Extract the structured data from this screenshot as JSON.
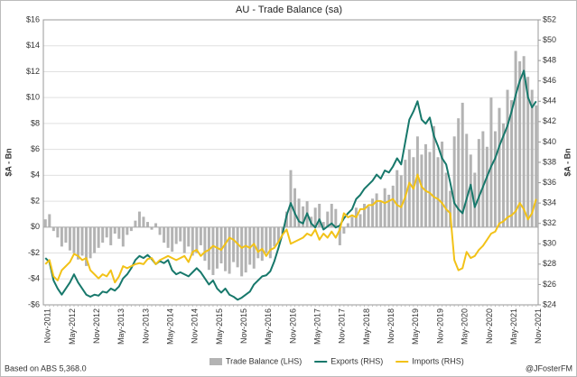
{
  "chart_data": {
    "type": "bar-line",
    "title": "AU - Trade Balance (sa)",
    "ylabel": "$A - Bn",
    "y2label": "$A - Bn",
    "source": "Based on ABS 5,368.0",
    "credit": "@JFosterFM",
    "grid": true,
    "legend": "bottom",
    "categories": [
      "Nov-2011",
      null,
      null,
      null,
      null,
      null,
      "May-2012",
      null,
      null,
      null,
      null,
      null,
      "Nov-2012",
      null,
      null,
      null,
      null,
      null,
      "May-2013",
      null,
      null,
      null,
      null,
      null,
      "Nov-2013",
      null,
      null,
      null,
      null,
      null,
      "May-2014",
      null,
      null,
      null,
      null,
      null,
      "Nov-2014",
      null,
      null,
      null,
      null,
      null,
      "May-2015",
      null,
      null,
      null,
      null,
      null,
      "Nov-2015",
      null,
      null,
      null,
      null,
      null,
      "May-2016",
      null,
      null,
      null,
      null,
      null,
      "Nov-2016",
      null,
      null,
      null,
      null,
      null,
      "May-2017",
      null,
      null,
      null,
      null,
      null,
      "Nov-2017",
      null,
      null,
      null,
      null,
      null,
      "May-2018",
      null,
      null,
      null,
      null,
      null,
      "Nov-2018",
      null,
      null,
      null,
      null,
      null,
      "May-2019",
      null,
      null,
      null,
      null,
      null,
      "Nov-2019",
      null,
      null,
      null,
      null,
      null,
      "May-2020",
      null,
      null,
      null,
      null,
      null,
      "Nov-2020",
      null,
      null,
      null,
      null,
      null,
      "May-2021",
      null,
      null,
      null,
      null,
      null,
      "Nov-2021"
    ],
    "ylim": [
      -6,
      16
    ],
    "yticks": [
      {
        "value": -6,
        "label": "-$6"
      },
      {
        "value": -4,
        "label": "-$4"
      },
      {
        "value": -2,
        "label": "-$2"
      },
      {
        "value": 0,
        "label": "$0"
      },
      {
        "value": 2,
        "label": "$2"
      },
      {
        "value": 4,
        "label": "$4"
      },
      {
        "value": 6,
        "label": "$6"
      },
      {
        "value": 8,
        "label": "$8"
      },
      {
        "value": 10,
        "label": "$10"
      },
      {
        "value": 12,
        "label": "$12"
      },
      {
        "value": 14,
        "label": "$14"
      },
      {
        "value": 16,
        "label": "$16"
      }
    ],
    "y2lim": [
      24,
      52
    ],
    "y2ticks": [
      {
        "value": 24,
        "label": "$24"
      },
      {
        "value": 26,
        "label": "$26"
      },
      {
        "value": 28,
        "label": "$28"
      },
      {
        "value": 30,
        "label": "$30"
      },
      {
        "value": 32,
        "label": "$32"
      },
      {
        "value": 34,
        "label": "$34"
      },
      {
        "value": 36,
        "label": "$36"
      },
      {
        "value": 38,
        "label": "$38"
      },
      {
        "value": 40,
        "label": "$40"
      },
      {
        "value": 42,
        "label": "$42"
      },
      {
        "value": 44,
        "label": "$44"
      },
      {
        "value": 46,
        "label": "$46"
      },
      {
        "value": 48,
        "label": "$48"
      },
      {
        "value": 50,
        "label": "$50"
      },
      {
        "value": 52,
        "label": "$52"
      }
    ],
    "series": [
      {
        "name": "Trade Balance (LHS)",
        "kind": "bar",
        "axis": "y",
        "color": "#b3b3b3",
        "values": [
          0.6,
          1.0,
          -0.3,
          -0.8,
          -1.5,
          -1.2,
          -1.8,
          -2.0,
          -2.5,
          -2.2,
          -3.0,
          -2.4,
          -2.0,
          -1.6,
          -1.2,
          -0.8,
          -1.4,
          -0.5,
          -0.9,
          -1.5,
          -0.6,
          -0.3,
          0.5,
          1.2,
          0.8,
          0.4,
          -0.2,
          0.3,
          -0.6,
          -1.2,
          -1.6,
          -1.9,
          -1.3,
          -1.1,
          -2.0,
          -1.5,
          -2.2,
          -2.0,
          -1.4,
          -2.6,
          -3.3,
          -3.7,
          -3.2,
          -2.8,
          -3.4,
          -3.6,
          -2.7,
          -3.1,
          -3.8,
          -3.5,
          -2.9,
          -3.2,
          -2.4,
          -2.6,
          -2.0,
          -2.4,
          -1.5,
          -1.2,
          -0.5,
          1.2,
          4.4,
          3.0,
          2.2,
          1.6,
          2.0,
          0.8,
          1.5,
          1.8,
          0.4,
          1.2,
          1.8,
          1.4,
          -1.4,
          -0.5,
          0.3,
          0.8,
          1.5,
          1.0,
          1.8,
          1.6,
          2.2,
          2.6,
          2.0,
          3.0,
          2.5,
          3.2,
          4.4,
          4.0,
          5.2,
          6.0,
          5.4,
          7.0,
          5.6,
          6.4,
          5.8,
          7.8,
          5.4,
          6.6,
          4.2,
          2.8,
          7.0,
          8.4,
          9.6,
          7.2,
          5.6,
          4.2,
          6.8,
          7.4,
          6.2,
          10.0,
          7.4,
          9.2,
          8.0,
          10.6,
          9.8,
          13.6,
          12.8,
          13.2,
          11.6,
          10.6,
          9.4
        ]
      },
      {
        "name": "Exports (RHS)",
        "kind": "line",
        "axis": "y2",
        "color": "#17786b",
        "values": [
          28.6,
          28.2,
          26.4,
          25.6,
          25.0,
          25.6,
          26.2,
          27.0,
          26.2,
          25.6,
          25.0,
          24.8,
          25.0,
          24.9,
          25.3,
          25.2,
          25.6,
          25.4,
          25.8,
          26.6,
          27.0,
          27.6,
          28.4,
          28.8,
          28.6,
          28.9,
          28.5,
          28.0,
          28.3,
          28.1,
          28.4,
          27.4,
          27.0,
          27.2,
          27.0,
          26.8,
          27.2,
          27.6,
          27.2,
          26.6,
          26.0,
          26.4,
          25.6,
          25.2,
          25.6,
          25.0,
          24.8,
          24.5,
          24.7,
          25.0,
          25.3,
          26.0,
          26.4,
          26.8,
          26.9,
          27.3,
          28.3,
          29.6,
          31.0,
          32.8,
          34.0,
          33.0,
          32.2,
          32.0,
          33.0,
          32.0,
          31.6,
          32.4,
          31.4,
          31.7,
          32.0,
          31.6,
          31.8,
          32.5,
          33.0,
          33.4,
          34.4,
          34.8,
          35.4,
          35.8,
          36.2,
          36.8,
          36.4,
          37.2,
          37.0,
          37.6,
          38.4,
          37.8,
          40.0,
          42.2,
          43.0,
          44.0,
          42.2,
          41.8,
          42.4,
          40.6,
          39.6,
          38.4,
          37.8,
          36.0,
          34.0,
          33.4,
          33.0,
          34.4,
          35.8,
          33.6,
          34.6,
          35.6,
          36.6,
          37.6,
          38.4,
          39.6,
          40.6,
          41.6,
          43.0,
          44.6,
          46.0,
          47.0,
          44.4,
          43.4,
          44.0
        ]
      },
      {
        "name": "Imports (RHS)",
        "kind": "line",
        "axis": "y2",
        "color": "#f2c218",
        "values": [
          28.0,
          28.4,
          26.8,
          26.4,
          27.4,
          27.8,
          28.2,
          29.0,
          28.8,
          28.4,
          28.6,
          27.4,
          27.0,
          26.6,
          27.0,
          26.8,
          27.4,
          26.2,
          26.8,
          27.8,
          27.6,
          27.8,
          28.0,
          28.1,
          28.0,
          28.5,
          28.6,
          28.0,
          28.4,
          28.6,
          28.8,
          28.6,
          28.4,
          28.6,
          28.8,
          28.2,
          29.2,
          29.4,
          28.8,
          29.2,
          29.4,
          29.8,
          29.6,
          29.4,
          30.0,
          30.6,
          30.4,
          30.0,
          29.6,
          29.8,
          29.6,
          30.0,
          29.2,
          29.5,
          28.8,
          29.4,
          29.6,
          30.2,
          30.9,
          31.4,
          30.0,
          30.2,
          30.4,
          30.6,
          31.0,
          30.8,
          31.4,
          30.4,
          31.0,
          30.6,
          31.2,
          30.6,
          31.4,
          33.0,
          32.6,
          32.8,
          32.6,
          33.4,
          33.4,
          33.8,
          33.8,
          34.2,
          34.2,
          34.0,
          34.2,
          34.4,
          33.8,
          33.6,
          34.6,
          36.0,
          35.4,
          36.8,
          35.6,
          35.2,
          35.0,
          34.6,
          34.4,
          34.0,
          33.4,
          33.0,
          28.4,
          27.4,
          27.6,
          29.2,
          28.6,
          28.8,
          29.4,
          29.8,
          30.4,
          31.0,
          31.2,
          32.0,
          32.2,
          32.6,
          32.8,
          33.2,
          34.0,
          33.4,
          32.4,
          33.0,
          34.4
        ]
      }
    ]
  }
}
